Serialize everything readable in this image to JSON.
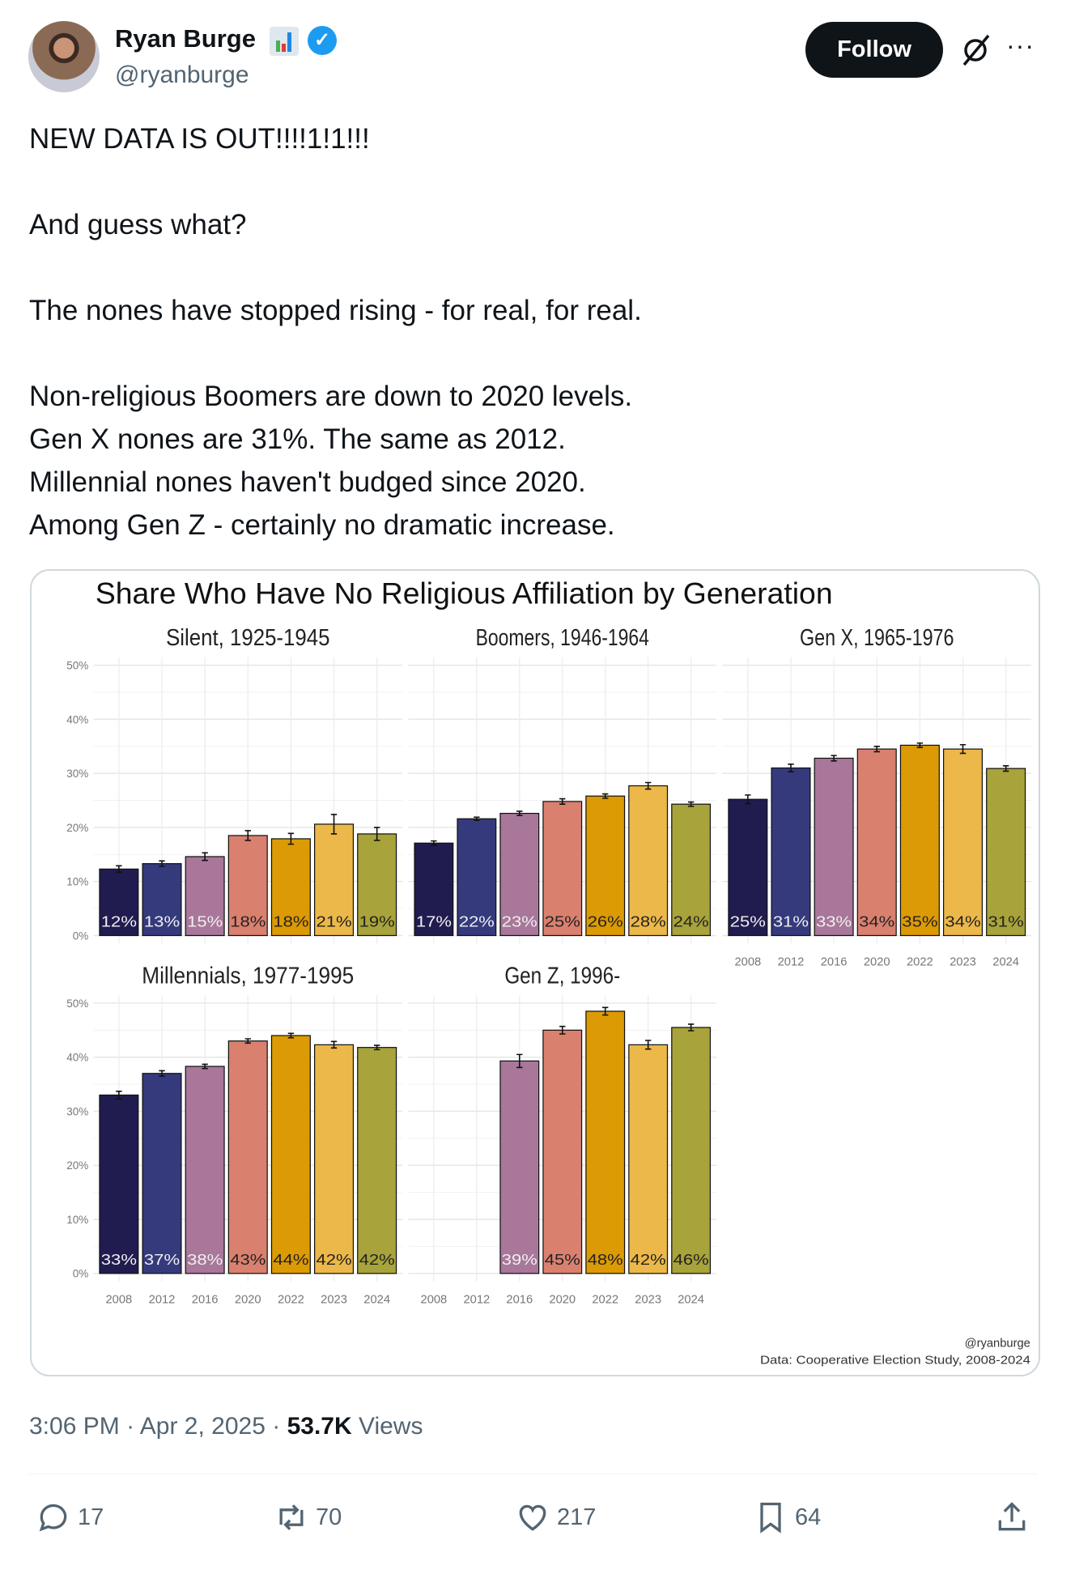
{
  "author": {
    "name": "Ryan Burge",
    "handle": "@ryanburge",
    "verified": true,
    "badge_icon": "bar-chart-emoji"
  },
  "header": {
    "follow_label": "Follow",
    "grok_icon": "grok-icon",
    "more_icon": "more-icon",
    "more_label": "···"
  },
  "tweet": {
    "lines": [
      "NEW DATA IS OUT!!!!1!1!!!",
      "And guess what?",
      "The nones have stopped rising - for real, for real.",
      "Non-religious Boomers are down to 2020 levels.",
      "Gen X nones are 31%. The same as 2012.",
      "Millennial nones haven't budged since 2020.",
      "Among Gen Z - certainly no dramatic increase."
    ]
  },
  "chart_data": {
    "type": "bar",
    "title": "Share Who Have No Religious Affiliation by Generation",
    "categories": [
      "2008",
      "2012",
      "2016",
      "2020",
      "2022",
      "2023",
      "2024"
    ],
    "colors": [
      "#201c50",
      "#353a7d",
      "#a8779a",
      "#da806f",
      "#dc9a04",
      "#ecb84a",
      "#a8a33a"
    ],
    "ylim": [
      0,
      50
    ],
    "yticks": [
      "0%",
      "10%",
      "20%",
      "30%",
      "40%",
      "50%"
    ],
    "panels": [
      {
        "title": "Silent, 1925-1945",
        "values": [
          12.3,
          13.3,
          14.6,
          18.5,
          17.9,
          20.6,
          18.8
        ],
        "labels": [
          "12%",
          "13%",
          "15%",
          "18%",
          "18%",
          "21%",
          "19%"
        ],
        "errors": [
          0.6,
          0.5,
          0.7,
          0.9,
          1.0,
          1.8,
          1.2
        ]
      },
      {
        "title": "Boomers, 1946-1964",
        "values": [
          17.1,
          21.6,
          22.6,
          24.8,
          25.8,
          27.7,
          24.3
        ],
        "labels": [
          "17%",
          "22%",
          "23%",
          "25%",
          "26%",
          "28%",
          "24%"
        ],
        "errors": [
          0.4,
          0.3,
          0.4,
          0.5,
          0.4,
          0.6,
          0.4
        ]
      },
      {
        "title": "Gen X, 1965-1976",
        "values": [
          25.2,
          31.0,
          32.8,
          34.5,
          35.2,
          34.5,
          30.9
        ],
        "labels": [
          "25%",
          "31%",
          "33%",
          "34%",
          "35%",
          "34%",
          "31%"
        ],
        "errors": [
          0.8,
          0.7,
          0.5,
          0.5,
          0.4,
          0.8,
          0.5
        ]
      },
      {
        "title": "Millennials, 1977-1995",
        "values": [
          33.0,
          37.0,
          38.3,
          43.0,
          44.0,
          42.3,
          41.8
        ],
        "labels": [
          "33%",
          "37%",
          "38%",
          "43%",
          "44%",
          "42%",
          "42%"
        ],
        "errors": [
          0.7,
          0.5,
          0.4,
          0.4,
          0.4,
          0.6,
          0.4
        ]
      },
      {
        "title": "Gen Z, 1996-",
        "values": [
          null,
          null,
          39.3,
          45.0,
          48.5,
          42.3,
          45.5
        ],
        "labels": [
          null,
          null,
          "39%",
          "45%",
          "48%",
          "42%",
          "46%"
        ],
        "errors": [
          null,
          null,
          1.2,
          0.7,
          0.7,
          0.8,
          0.6
        ]
      }
    ],
    "credit": "@ryanburge",
    "source": "Data: Cooperative Election Study, 2008-2024"
  },
  "meta": {
    "time": "3:06 PM",
    "date": "Apr 2, 2025",
    "views_count": "53.7K",
    "views_label": "Views",
    "sep": "·"
  },
  "actions": {
    "replies": "17",
    "reposts": "70",
    "likes": "217",
    "bookmarks": "64"
  }
}
